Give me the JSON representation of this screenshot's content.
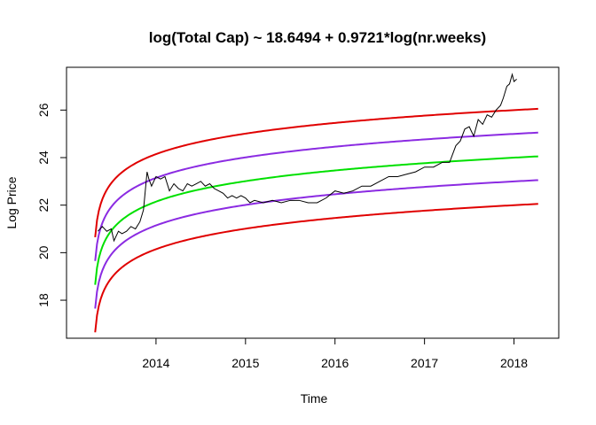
{
  "chart_data": {
    "type": "line",
    "title": "log(Total Cap) ~ 18.6494 + 0.9721*log(nr.weeks)",
    "xlabel": "Time",
    "ylabel": "Log Price",
    "xlim": [
      2013.0,
      2018.5
    ],
    "ylim": [
      16.4,
      27.8
    ],
    "x_ticks": [
      2014,
      2015,
      2016,
      2017,
      2018
    ],
    "x_tick_labels": [
      "2014",
      "2015",
      "2016",
      "2017",
      "2018"
    ],
    "y_ticks": [
      18,
      20,
      22,
      24,
      26
    ],
    "y_tick_labels": [
      "18",
      "20",
      "22",
      "24",
      "26"
    ],
    "grid": false,
    "model": {
      "intercept": 18.6494,
      "slope": 0.9721,
      "start_year": 2013.32,
      "end_year": 2018.27
    },
    "series": [
      {
        "role": "model",
        "offset": 2,
        "color": "#e00000"
      },
      {
        "role": "model",
        "offset": 1,
        "color": "#8b2be2"
      },
      {
        "role": "model",
        "offset": 0,
        "color": "#00e000"
      },
      {
        "role": "model",
        "offset": -1,
        "color": "#8b2be2"
      },
      {
        "role": "model",
        "offset": -2,
        "color": "#e00000"
      },
      {
        "role": "observed",
        "color": "#000000",
        "x": [
          2013.35,
          2013.4,
          2013.45,
          2013.5,
          2013.53,
          2013.58,
          2013.62,
          2013.67,
          2013.72,
          2013.77,
          2013.82,
          2013.86,
          2013.88,
          2013.9,
          2013.92,
          2013.95,
          2014.0,
          2014.05,
          2014.1,
          2014.15,
          2014.2,
          2014.25,
          2014.3,
          2014.35,
          2014.4,
          2014.45,
          2014.5,
          2014.55,
          2014.6,
          2014.65,
          2014.7,
          2014.75,
          2014.8,
          2014.85,
          2014.9,
          2014.95,
          2015.0,
          2015.05,
          2015.1,
          2015.2,
          2015.3,
          2015.4,
          2015.5,
          2015.6,
          2015.7,
          2015.8,
          2015.9,
          2016.0,
          2016.1,
          2016.2,
          2016.3,
          2016.4,
          2016.5,
          2016.6,
          2016.7,
          2016.8,
          2016.9,
          2017.0,
          2017.1,
          2017.2,
          2017.28,
          2017.35,
          2017.4,
          2017.45,
          2017.5,
          2017.55,
          2017.6,
          2017.65,
          2017.7,
          2017.75,
          2017.8,
          2017.85,
          2017.88,
          2017.92,
          2017.95,
          2017.98,
          2018.0,
          2018.03
        ],
        "y": [
          20.9,
          21.1,
          20.9,
          21.0,
          20.5,
          20.9,
          20.8,
          20.9,
          21.1,
          21.0,
          21.3,
          21.8,
          22.6,
          23.4,
          23.1,
          22.8,
          23.2,
          23.1,
          23.2,
          22.6,
          22.9,
          22.7,
          22.6,
          22.9,
          22.8,
          22.9,
          23.0,
          22.8,
          22.9,
          22.7,
          22.6,
          22.5,
          22.3,
          22.4,
          22.3,
          22.4,
          22.3,
          22.1,
          22.2,
          22.1,
          22.2,
          22.1,
          22.2,
          22.2,
          22.1,
          22.1,
          22.3,
          22.6,
          22.5,
          22.6,
          22.8,
          22.8,
          23.0,
          23.2,
          23.2,
          23.3,
          23.4,
          23.6,
          23.6,
          23.8,
          23.8,
          24.5,
          24.7,
          25.2,
          25.3,
          24.9,
          25.6,
          25.4,
          25.8,
          25.7,
          26.0,
          26.2,
          26.5,
          27.0,
          27.1,
          27.5,
          27.2,
          27.3
        ]
      }
    ]
  }
}
